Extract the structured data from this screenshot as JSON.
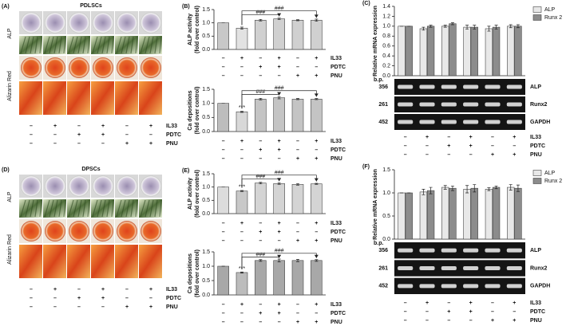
{
  "panels": [
    {
      "letter": "(A)",
      "title": "PDLSCs",
      "rows": [
        "ALP",
        "Alizarin Red"
      ],
      "conditions": [
        {
          "name": "IL33",
          "signs": [
            "–",
            "+",
            "–",
            "+",
            "–",
            "+"
          ]
        },
        {
          "name": "PDTC",
          "signs": [
            "–",
            "–",
            "+",
            "+",
            "–",
            "–"
          ]
        },
        {
          "name": "PNU",
          "signs": [
            "–",
            "–",
            "–",
            "–",
            "+",
            "+"
          ]
        }
      ]
    },
    {
      "letter": "(D)",
      "title": "DPSCs",
      "rows": [
        "ALP",
        "Alizarin Red"
      ],
      "conditions": [
        {
          "name": "IL33",
          "signs": [
            "–",
            "+",
            "–",
            "+",
            "–",
            "+"
          ]
        },
        {
          "name": "PDTC",
          "signs": [
            "–",
            "–",
            "+",
            "+",
            "–",
            "–"
          ]
        },
        {
          "name": "PNU",
          "signs": [
            "–",
            "–",
            "–",
            "–",
            "+",
            "+"
          ]
        }
      ]
    }
  ],
  "chart_data": [
    {
      "type": "bar",
      "letter": "(B)",
      "ylabel": "ALP activity",
      "ylabel2": "(fold over control)",
      "ylim": [
        0,
        1.5
      ],
      "yticks": [
        {
          "value": 0,
          "label": "0.0"
        },
        {
          "value": 0.5,
          "label": "0.5"
        },
        {
          "value": 1,
          "label": "1.0"
        },
        {
          "value": 1.5,
          "label": "1.5"
        }
      ],
      "values": [
        1.0,
        0.8,
        1.1,
        1.15,
        1.1,
        1.1
      ],
      "errors": [
        0,
        0.04,
        0.03,
        0.03,
        0.02,
        0.04
      ],
      "colors": [
        "#c8c8c8",
        "#e2e2e2",
        "#d0d0d0",
        "#d0d0d0",
        "#d0d0d0",
        "#d0d0d0"
      ],
      "brackets": [
        "###",
        "###"
      ],
      "conditions": [
        {
          "name": "IL33",
          "signs": [
            "–",
            "+",
            "–",
            "+",
            "–",
            "+"
          ]
        },
        {
          "name": "PDTC",
          "signs": [
            "–",
            "–",
            "+",
            "+",
            "–",
            "–"
          ]
        },
        {
          "name": "PNU",
          "signs": [
            "–",
            "–",
            "–",
            "–",
            "+",
            "+"
          ]
        }
      ]
    },
    {
      "type": "bar",
      "ylabel": "Ca depositions",
      "ylabel2": "(fold over control)",
      "ylim": [
        0,
        1.5
      ],
      "yticks": [
        {
          "value": 0,
          "label": "0.0"
        },
        {
          "value": 0.5,
          "label": "0.5"
        },
        {
          "value": 1,
          "label": "1.0"
        },
        {
          "value": 1.5,
          "label": "1.5"
        }
      ],
      "values": [
        1.0,
        0.7,
        1.15,
        1.2,
        1.15,
        1.15
      ],
      "errors": [
        0,
        0.02,
        0.03,
        0.04,
        0.02,
        0.02
      ],
      "colors": [
        "#bdbdbd",
        "#d8d8d8",
        "#c4c4c4",
        "#c4c4c4",
        "#c4c4c4",
        "#c4c4c4"
      ],
      "significance": [
        null,
        "***",
        null,
        null,
        null,
        null
      ],
      "brackets": [
        "###",
        "###"
      ],
      "conditions": [
        {
          "name": "IL33",
          "signs": [
            "–",
            "+",
            "–",
            "+",
            "–",
            "+"
          ]
        },
        {
          "name": "PDTC",
          "signs": [
            "–",
            "–",
            "+",
            "+",
            "–",
            "–"
          ]
        },
        {
          "name": "PNU",
          "signs": [
            "–",
            "–",
            "–",
            "–",
            "+",
            "+"
          ]
        }
      ]
    },
    {
      "type": "grouped_bar",
      "letter": "(C)",
      "ylabel": "Relative mRNA expression",
      "ylim": [
        0,
        1.4
      ],
      "yticks": [
        {
          "value": 0,
          "label": "0.0"
        },
        {
          "value": 0.2,
          "label": "0.2"
        },
        {
          "value": 0.4,
          "label": "0.4"
        },
        {
          "value": 0.6,
          "label": "0.6"
        },
        {
          "value": 0.8,
          "label": "0.8"
        },
        {
          "value": 1,
          "label": "1.0"
        },
        {
          "value": 1.2,
          "label": "1.2"
        },
        {
          "value": 1.4,
          "label": "1.4"
        }
      ],
      "legend": "upper right",
      "series": [
        {
          "name": "ALP",
          "color": "#e8e8e8",
          "values": [
            1.0,
            0.95,
            1.0,
            0.98,
            0.95,
            1.0
          ],
          "errors": [
            0,
            0.03,
            0.02,
            0.04,
            0.05,
            0.03
          ]
        },
        {
          "name": "Runx 2",
          "color": "#8c8c8c",
          "values": [
            1.0,
            1.0,
            1.05,
            0.98,
            0.98,
            1.0
          ],
          "errors": [
            0,
            0.02,
            0.02,
            0.04,
            0.04,
            0.03
          ]
        }
      ],
      "gel": {
        "unit": "b.p.",
        "bands": [
          {
            "size": "356",
            "gene": "ALP"
          },
          {
            "size": "261",
            "gene": "Runx2"
          },
          {
            "size": "452",
            "gene": "GAPDH"
          }
        ]
      },
      "conditions": [
        {
          "name": "IL33",
          "signs": [
            "–",
            "+",
            "–",
            "+",
            "–",
            "+"
          ]
        },
        {
          "name": "PDTC",
          "signs": [
            "–",
            "–",
            "+",
            "+",
            "–",
            "–"
          ]
        },
        {
          "name": "PNU",
          "signs": [
            "–",
            "–",
            "–",
            "–",
            "+",
            "+"
          ]
        }
      ]
    },
    {
      "type": "bar",
      "letter": "(E)",
      "ylabel": "ALP activity",
      "ylabel2": "(fold over control)",
      "ylim": [
        0,
        1.5
      ],
      "yticks": [
        {
          "value": 0,
          "label": "0.0"
        },
        {
          "value": 0.5,
          "label": "0.5"
        },
        {
          "value": 1,
          "label": "1.0"
        },
        {
          "value": 1.5,
          "label": "1.5"
        }
      ],
      "values": [
        1.0,
        0.85,
        1.15,
        1.13,
        1.1,
        1.12
      ],
      "errors": [
        0,
        0.02,
        0.03,
        0.03,
        0.03,
        0.02
      ],
      "colors": [
        "#dcdcdc",
        "#c8c8c8",
        "#d4d4d4",
        "#d4d4d4",
        "#d4d4d4",
        "#d4d4d4"
      ],
      "significance": [
        null,
        "***",
        null,
        null,
        null,
        null
      ],
      "brackets": [
        "###",
        "###"
      ],
      "conditions": [
        {
          "name": "IL33",
          "signs": [
            "–",
            "+",
            "–",
            "+",
            "–",
            "+"
          ]
        },
        {
          "name": "PDTC",
          "signs": [
            "–",
            "–",
            "+",
            "+",
            "–",
            "–"
          ]
        },
        {
          "name": "PNU",
          "signs": [
            "–",
            "–",
            "–",
            "–",
            "+",
            "+"
          ]
        }
      ]
    },
    {
      "type": "bar",
      "ylabel": "Ca depositions",
      "ylabel2": "(fold over control)",
      "ylim": [
        0,
        1.5
      ],
      "yticks": [
        {
          "value": 0,
          "label": "0.0"
        },
        {
          "value": 0.5,
          "label": "0.5"
        },
        {
          "value": 1,
          "label": "1.0"
        },
        {
          "value": 1.5,
          "label": "1.5"
        }
      ],
      "values": [
        1.0,
        0.78,
        1.2,
        1.2,
        1.2,
        1.2
      ],
      "errors": [
        0,
        0.02,
        0.03,
        0.05,
        0.04,
        0.03
      ],
      "colors": [
        "#a8a8a8",
        "#bcbcbc",
        "#a8a8a8",
        "#a8a8a8",
        "#a8a8a8",
        "#a8a8a8"
      ],
      "significance": [
        null,
        "***",
        null,
        null,
        null,
        null
      ],
      "brackets": [
        "###",
        "###"
      ],
      "conditions": [
        {
          "name": "IL33",
          "signs": [
            "–",
            "+",
            "–",
            "+",
            "–",
            "+"
          ]
        },
        {
          "name": "PDTC",
          "signs": [
            "–",
            "–",
            "+",
            "+",
            "–",
            "–"
          ]
        },
        {
          "name": "PNU",
          "signs": [
            "–",
            "–",
            "–",
            "–",
            "+",
            "+"
          ]
        }
      ]
    },
    {
      "type": "grouped_bar",
      "letter": "(F)",
      "ylabel": "Relative mRNA expression",
      "ylim": [
        0,
        1.5
      ],
      "yticks": [
        {
          "value": 0,
          "label": "0.0"
        },
        {
          "value": 0.5,
          "label": "0.5"
        },
        {
          "value": 1,
          "label": "1.0"
        },
        {
          "value": 1.5,
          "label": "1.5"
        }
      ],
      "legend": "upper right",
      "series": [
        {
          "name": "ALP",
          "color": "#e8e8e8",
          "values": [
            1.0,
            1.02,
            1.12,
            1.08,
            1.08,
            1.12
          ],
          "errors": [
            0,
            0.06,
            0.04,
            0.08,
            0.03,
            0.06
          ]
        },
        {
          "name": "Runx 2",
          "color": "#8c8c8c",
          "values": [
            1.0,
            1.05,
            1.1,
            1.1,
            1.12,
            1.1
          ],
          "errors": [
            0,
            0.07,
            0.05,
            0.08,
            0.03,
            0.07
          ]
        }
      ],
      "gel": {
        "unit": "b.p.",
        "bands": [
          {
            "size": "356",
            "gene": "ALP"
          },
          {
            "size": "261",
            "gene": "Runx2"
          },
          {
            "size": "452",
            "gene": "GAPDH"
          }
        ]
      },
      "conditions": [
        {
          "name": "IL33",
          "signs": [
            "–",
            "+",
            "–",
            "+",
            "–",
            "+"
          ]
        },
        {
          "name": "PDTC",
          "signs": [
            "–",
            "–",
            "+",
            "+",
            "–",
            "–"
          ]
        },
        {
          "name": "PNU",
          "signs": [
            "–",
            "–",
            "–",
            "–",
            "+",
            "+"
          ]
        }
      ]
    }
  ]
}
